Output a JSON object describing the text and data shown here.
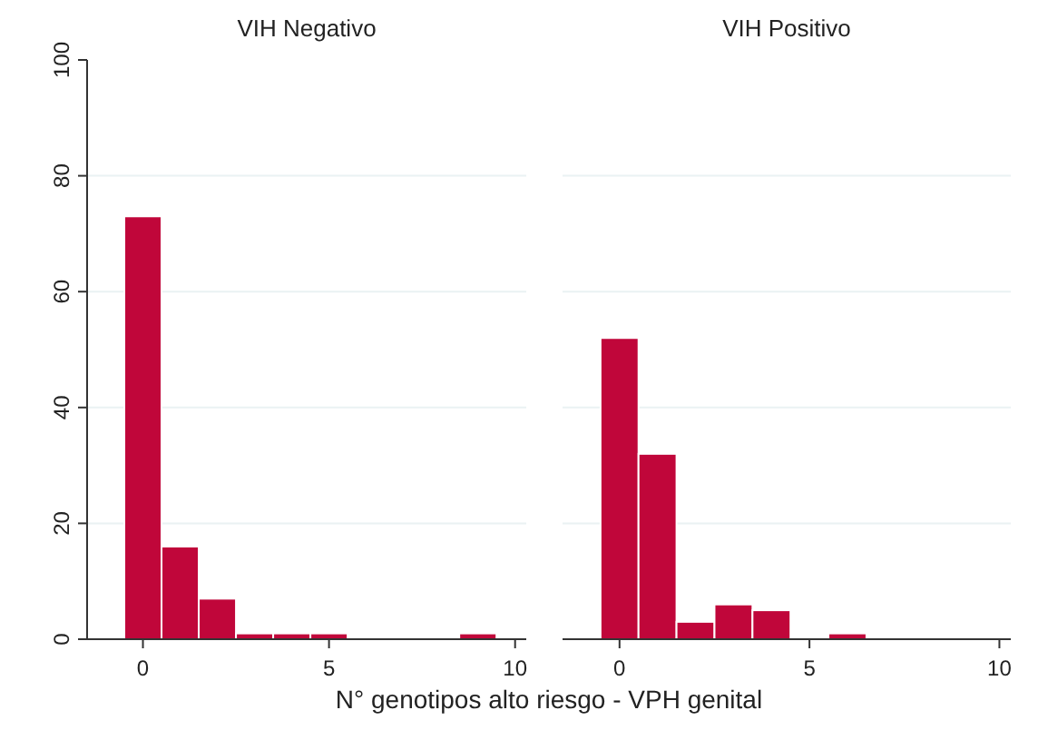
{
  "chart_data": [
    {
      "type": "histogram",
      "title": "VIH Negativo",
      "xlabel": "N° genotipos alto riesgo - VPH genital",
      "bins": [
        -0.5,
        0.5,
        1.5,
        2.5,
        3.5,
        4.5,
        5.5,
        6.5,
        7.5,
        8.5,
        9.5
      ],
      "values": [
        73,
        16,
        7,
        1,
        1,
        1,
        0,
        0,
        0,
        1
      ],
      "color": "#c0063a",
      "xlim": [
        -1.5,
        10.3
      ],
      "xticks": [
        0,
        5,
        10
      ],
      "ylim": [
        0,
        100
      ],
      "yticks": [
        0,
        20,
        40,
        60,
        80,
        100
      ],
      "grid": "y"
    },
    {
      "type": "histogram",
      "title": "VIH Positivo",
      "bins": [
        -0.5,
        0.5,
        1.5,
        2.5,
        3.5,
        4.5,
        5.5,
        6.5
      ],
      "values": [
        52,
        32,
        3,
        6,
        5,
        0,
        1
      ],
      "color": "#c0063a",
      "xlim": [
        -1.5,
        10.3
      ],
      "xticks": [
        0,
        5,
        10
      ],
      "ylim": [
        0,
        100
      ],
      "yticks": [
        0,
        20,
        40,
        60,
        80,
        100
      ],
      "grid": "y",
      "tick_labels": "x"
    }
  ]
}
